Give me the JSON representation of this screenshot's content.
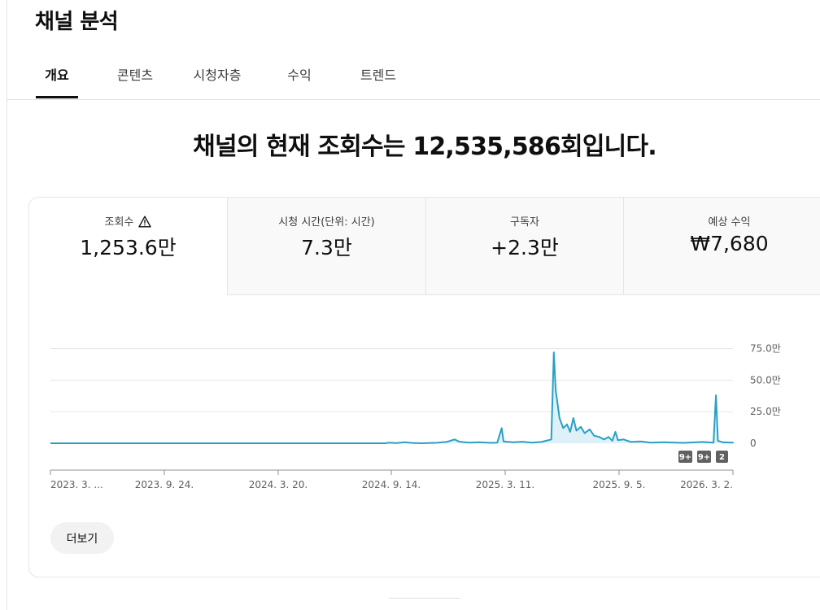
{
  "page": {
    "title": "채널 분석"
  },
  "tabs": [
    {
      "label": "개요",
      "active": true
    },
    {
      "label": "콘텐츠",
      "active": false
    },
    {
      "label": "시청자층",
      "active": false
    },
    {
      "label": "수익",
      "active": false
    },
    {
      "label": "트렌드",
      "active": false
    }
  ],
  "headline": "채널의 현재 조회수는 12,535,586회입니다.",
  "metrics": [
    {
      "label": "조회수",
      "value": "1,253.6만",
      "selected": true,
      "icon": "warning-icon"
    },
    {
      "label": "시청 시간(단위: 시간)",
      "value": "7.3만",
      "selected": false
    },
    {
      "label": "구독자",
      "value": "+2.3만",
      "selected": false
    },
    {
      "label": "예상 수익",
      "value": "₩7,680",
      "selected": false
    }
  ],
  "chart_data": {
    "type": "line",
    "series_color": "#2a9fc4",
    "fill_color": "#d6eef7",
    "y_ticks": [
      "75.0만",
      "50.0만",
      "25.0만",
      "0"
    ],
    "y_tick_values": [
      750000,
      500000,
      250000,
      0
    ],
    "ylim": [
      0,
      780000
    ],
    "x_ticks": [
      "2023. 3. ...",
      "2023. 9. 24.",
      "2024. 3. 20.",
      "2024. 9. 14.",
      "2025. 3. 11.",
      "2025. 9. 5.",
      "2026. 3. 2."
    ],
    "x_start": "2023-03-31",
    "x_end": "2026-03-21",
    "points": [
      [
        "2023-03-31",
        0
      ],
      [
        "2024-09-14",
        0
      ],
      [
        "2024-09-20",
        5000
      ],
      [
        "2024-10-01",
        2000
      ],
      [
        "2024-10-15",
        8000
      ],
      [
        "2024-10-25",
        3000
      ],
      [
        "2024-11-10",
        0
      ],
      [
        "2024-12-05",
        4000
      ],
      [
        "2024-12-20",
        10000
      ],
      [
        "2025-01-02",
        30000
      ],
      [
        "2025-01-10",
        12000
      ],
      [
        "2025-01-25",
        5000
      ],
      [
        "2025-02-10",
        8000
      ],
      [
        "2025-03-01",
        3000
      ],
      [
        "2025-03-11",
        5000
      ],
      [
        "2025-03-18",
        120000
      ],
      [
        "2025-03-21",
        15000
      ],
      [
        "2025-04-05",
        8000
      ],
      [
        "2025-04-20",
        12000
      ],
      [
        "2025-05-05",
        5000
      ],
      [
        "2025-05-20",
        10000
      ],
      [
        "2025-06-05",
        30000
      ],
      [
        "2025-06-09",
        720000
      ],
      [
        "2025-06-12",
        420000
      ],
      [
        "2025-06-18",
        200000
      ],
      [
        "2025-06-24",
        120000
      ],
      [
        "2025-06-30",
        150000
      ],
      [
        "2025-07-05",
        90000
      ],
      [
        "2025-07-10",
        200000
      ],
      [
        "2025-07-15",
        100000
      ],
      [
        "2025-07-22",
        130000
      ],
      [
        "2025-07-28",
        80000
      ],
      [
        "2025-08-05",
        110000
      ],
      [
        "2025-08-12",
        60000
      ],
      [
        "2025-08-20",
        50000
      ],
      [
        "2025-08-28",
        30000
      ],
      [
        "2025-09-04",
        50000
      ],
      [
        "2025-09-10",
        20000
      ],
      [
        "2025-09-15",
        90000
      ],
      [
        "2025-09-19",
        25000
      ],
      [
        "2025-09-28",
        30000
      ],
      [
        "2025-10-10",
        10000
      ],
      [
        "2025-10-25",
        15000
      ],
      [
        "2025-11-10",
        5000
      ],
      [
        "2025-12-01",
        8000
      ],
      [
        "2026-01-01",
        3000
      ],
      [
        "2026-02-01",
        10000
      ],
      [
        "2026-02-18",
        5000
      ],
      [
        "2026-02-22",
        380000
      ],
      [
        "2026-02-25",
        20000
      ],
      [
        "2026-03-05",
        8000
      ],
      [
        "2026-03-21",
        5000
      ]
    ],
    "markers": [
      "9+",
      "9+",
      "2"
    ]
  },
  "more_button": "더보기"
}
